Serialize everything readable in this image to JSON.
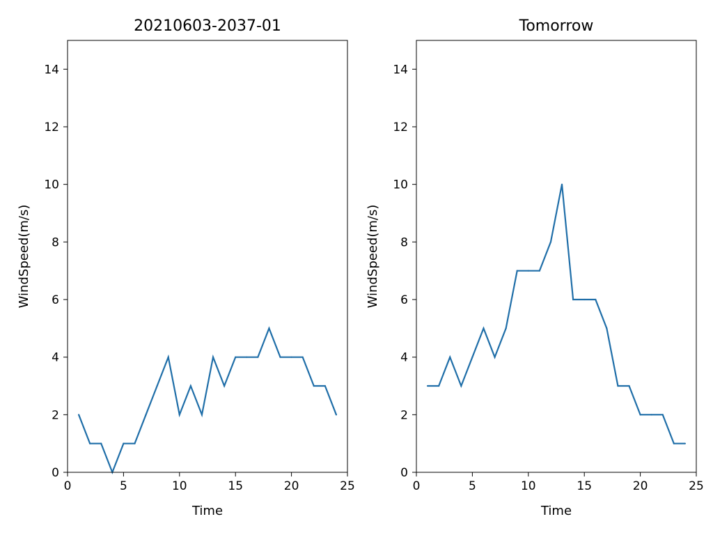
{
  "chart_data": [
    {
      "type": "line",
      "title": "20210603-2037-01",
      "xlabel": "Time",
      "ylabel": "WindSpeed(m/s)",
      "xlim": [
        0,
        25
      ],
      "ylim": [
        0,
        15
      ],
      "xticks": [
        0,
        5,
        10,
        15,
        20,
        25
      ],
      "yticks": [
        0,
        2,
        4,
        6,
        8,
        10,
        12,
        14
      ],
      "grid": false,
      "color": "#1f6ea8",
      "x": [
        1,
        2,
        3,
        4,
        5,
        6,
        7,
        8,
        9,
        10,
        11,
        12,
        13,
        14,
        15,
        16,
        17,
        18,
        19,
        20,
        21,
        22,
        23,
        24
      ],
      "y": [
        2,
        1,
        1,
        0,
        1,
        1,
        2,
        3,
        4,
        2,
        3,
        2,
        4,
        3,
        4,
        4,
        4,
        5,
        4,
        4,
        4,
        3,
        3,
        2
      ]
    },
    {
      "type": "line",
      "title": "Tomorrow",
      "xlabel": "Time",
      "ylabel": "WindSpeed(m/s)",
      "xlim": [
        0,
        25
      ],
      "ylim": [
        0,
        15
      ],
      "xticks": [
        0,
        5,
        10,
        15,
        20,
        25
      ],
      "yticks": [
        0,
        2,
        4,
        6,
        8,
        10,
        12,
        14
      ],
      "grid": false,
      "color": "#1f6ea8",
      "x": [
        1,
        2,
        3,
        4,
        5,
        6,
        7,
        8,
        9,
        10,
        11,
        12,
        13,
        14,
        15,
        16,
        17,
        18,
        19,
        20,
        21,
        22,
        23,
        24
      ],
      "y": [
        3,
        3,
        4,
        3,
        4,
        5,
        4,
        5,
        7,
        7,
        7,
        8,
        10,
        6,
        6,
        6,
        5,
        3,
        3,
        2,
        2,
        2,
        1,
        1
      ]
    }
  ]
}
